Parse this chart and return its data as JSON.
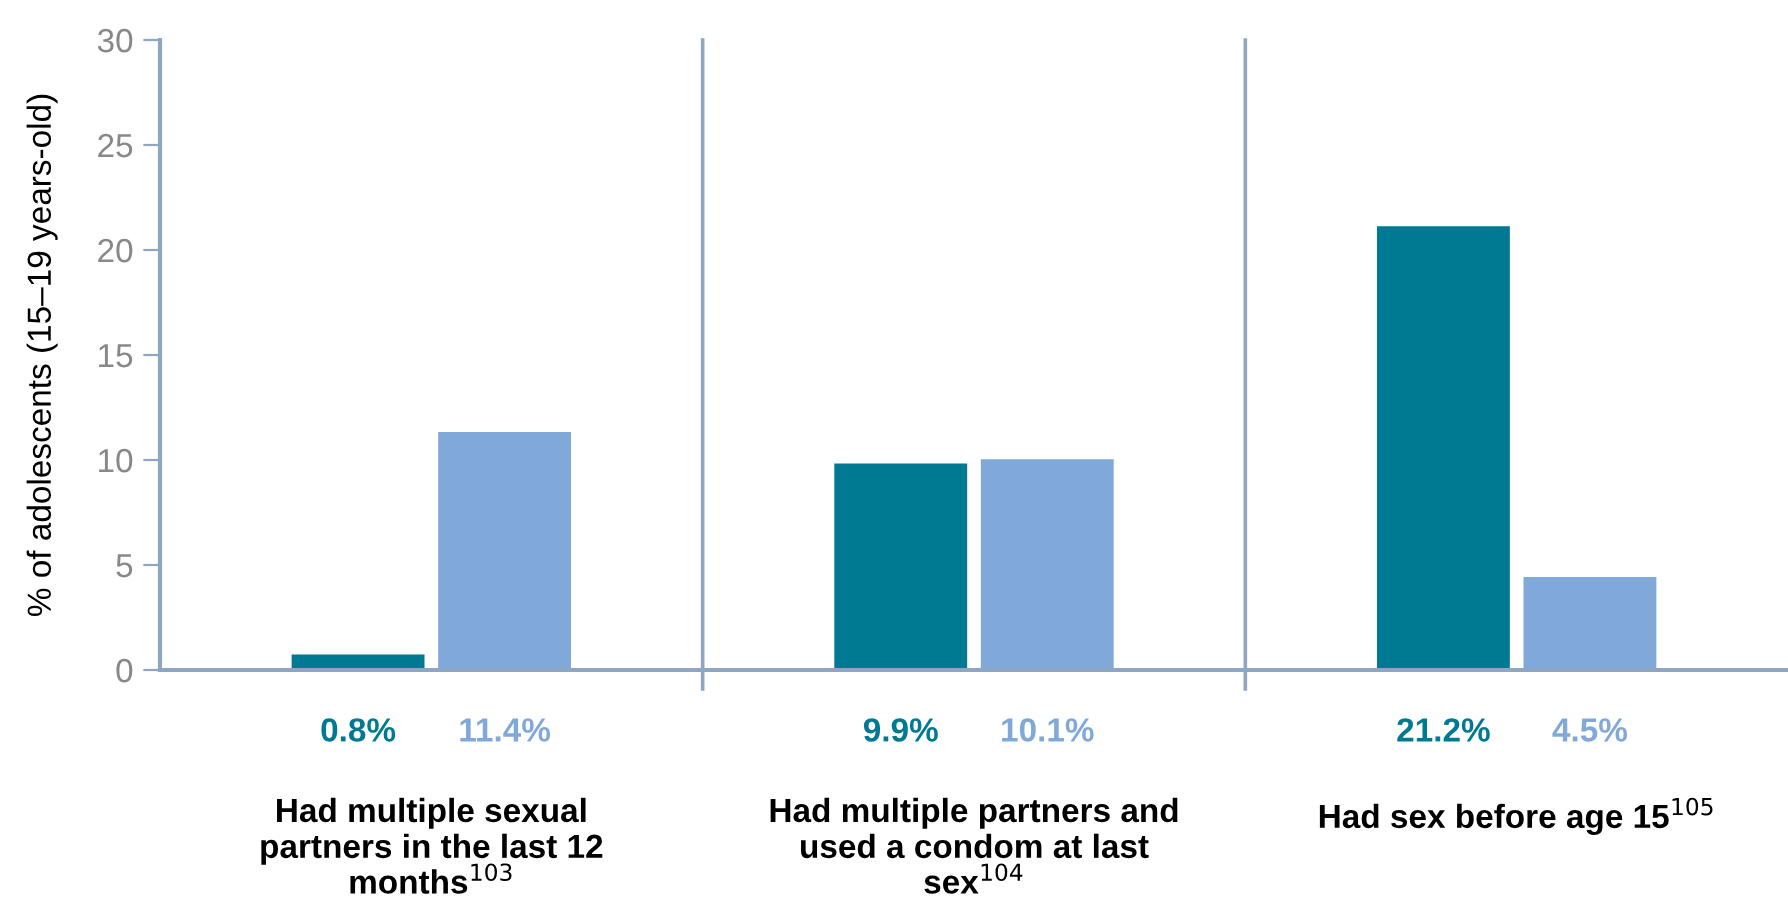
{
  "chart_data": {
    "type": "bar",
    "ylabel": "% of adolescents (15–19 years-old)",
    "categories": [
      "Had multiple sexual\npartners in the last 12\nmonths$^{103}$",
      "Had multiple partners and\nused a condom at last\nsex$^{104}$",
      "Had sex before age 15$^{105}$"
    ],
    "series": [
      {
        "color": "#007a93",
        "values": [
          0.8,
          9.9,
          21.2
        ],
        "value_labels": [
          "0.8%",
          "9.9%",
          "21.2%"
        ]
      },
      {
        "color": "#80a9da",
        "values": [
          11.4,
          10.1,
          4.5
        ],
        "value_labels": [
          "11.4%",
          "10.1%",
          "4.5%"
        ]
      }
    ],
    "ylim": [
      0,
      30
    ],
    "yticks": [
      0,
      5,
      10,
      15,
      20,
      25,
      30
    ],
    "grid": false,
    "legend": false
  }
}
